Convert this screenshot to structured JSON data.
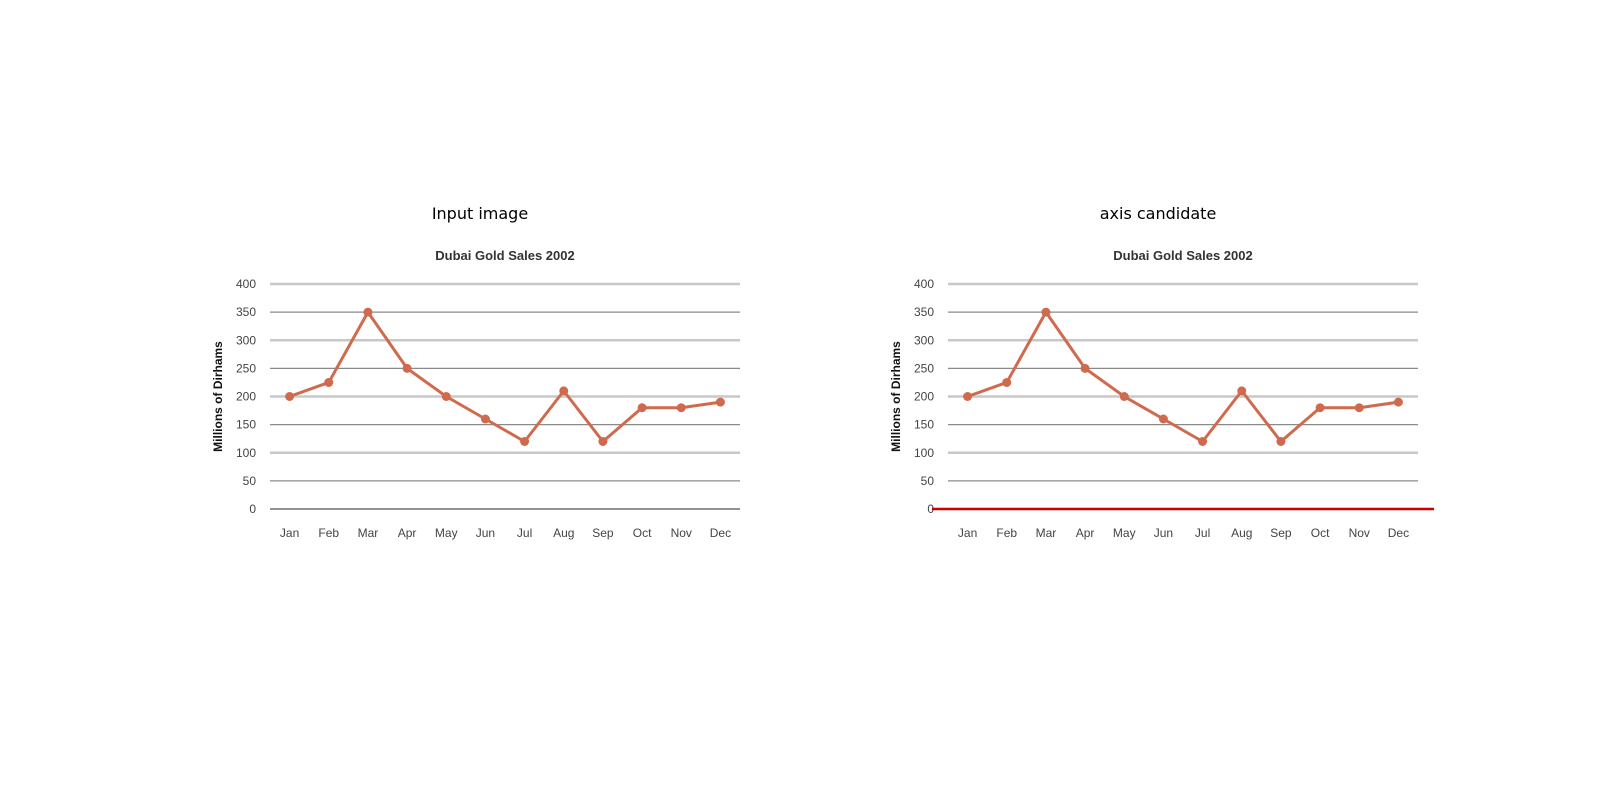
{
  "panels": [
    {
      "title": "Input image",
      "highlight_axis": false
    },
    {
      "title": "axis candidate",
      "highlight_axis": true
    }
  ],
  "colors": {
    "line": "#d06a4e",
    "grid_light": "#c8c8c8",
    "grid_dark": "#8a8a8a",
    "highlight": "#cc0000"
  },
  "chart_data": [
    {
      "type": "line",
      "title": "Dubai Gold Sales 2002",
      "xlabel": "",
      "ylabel": "Millions of Dirhams",
      "categories": [
        "Jan",
        "Feb",
        "Mar",
        "Apr",
        "May",
        "Jun",
        "Jul",
        "Aug",
        "Sep",
        "Oct",
        "Nov",
        "Dec"
      ],
      "values": [
        200,
        225,
        350,
        250,
        200,
        160,
        120,
        210,
        120,
        180,
        180,
        190
      ],
      "ylim": [
        0,
        400
      ],
      "yticks": [
        0,
        50,
        100,
        150,
        200,
        250,
        300,
        350,
        400
      ],
      "grid": true,
      "legend": "none"
    },
    {
      "type": "line",
      "title": "Dubai Gold Sales 2002",
      "xlabel": "",
      "ylabel": "Millions of Dirhams",
      "categories": [
        "Jan",
        "Feb",
        "Mar",
        "Apr",
        "May",
        "Jun",
        "Jul",
        "Aug",
        "Sep",
        "Oct",
        "Nov",
        "Dec"
      ],
      "values": [
        200,
        225,
        350,
        250,
        200,
        160,
        120,
        210,
        120,
        180,
        180,
        190
      ],
      "ylim": [
        0,
        400
      ],
      "yticks": [
        0,
        50,
        100,
        150,
        200,
        250,
        300,
        350,
        400
      ],
      "grid": true,
      "legend": "none"
    }
  ]
}
